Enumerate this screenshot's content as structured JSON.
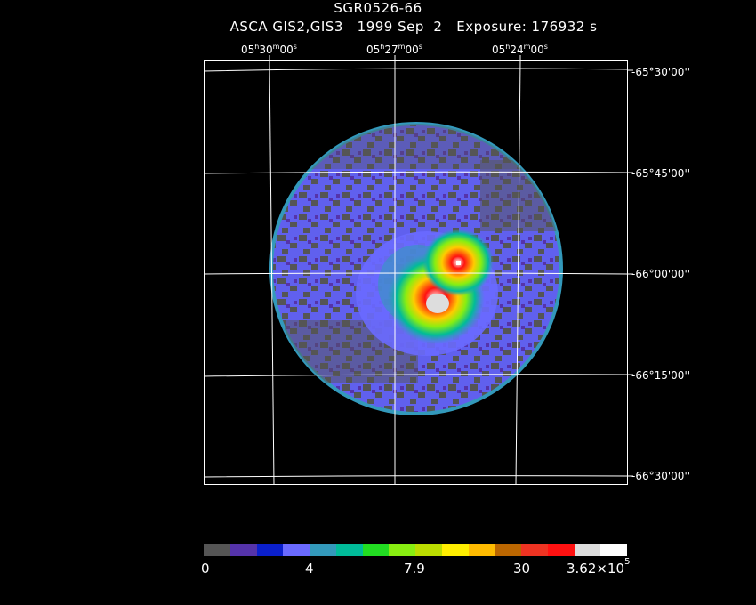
{
  "header": {
    "title": "SGR0526-66",
    "subtitle": "ASCA GIS2,GIS3   1999 Sep  2   Exposure: 176932 s"
  },
  "ra_labels": [
    {
      "h": "05",
      "m": "30",
      "s": "00"
    },
    {
      "h": "05",
      "m": "27",
      "s": "00"
    },
    {
      "h": "05",
      "m": "24",
      "s": "00"
    }
  ],
  "dec_labels": [
    "-65°30'00''",
    "-65°45'00''",
    "-66°00'00''",
    "-66°15'00''",
    "-66°30'00''"
  ],
  "colorbar": {
    "colors": [
      "#555555",
      "#5533aa",
      "#0a1fcc",
      "#6a6aff",
      "#3399bb",
      "#00bb99",
      "#22dd22",
      "#88ee11",
      "#bbdd00",
      "#ffee00",
      "#ffbb00",
      "#bb6600",
      "#ee3322",
      "#ff1111",
      "#dddddd",
      "#ffffff"
    ],
    "labels": [
      "0",
      "4",
      "7.9",
      "30"
    ],
    "max_label_base": "3.62×10",
    "max_label_exp": "5"
  }
}
